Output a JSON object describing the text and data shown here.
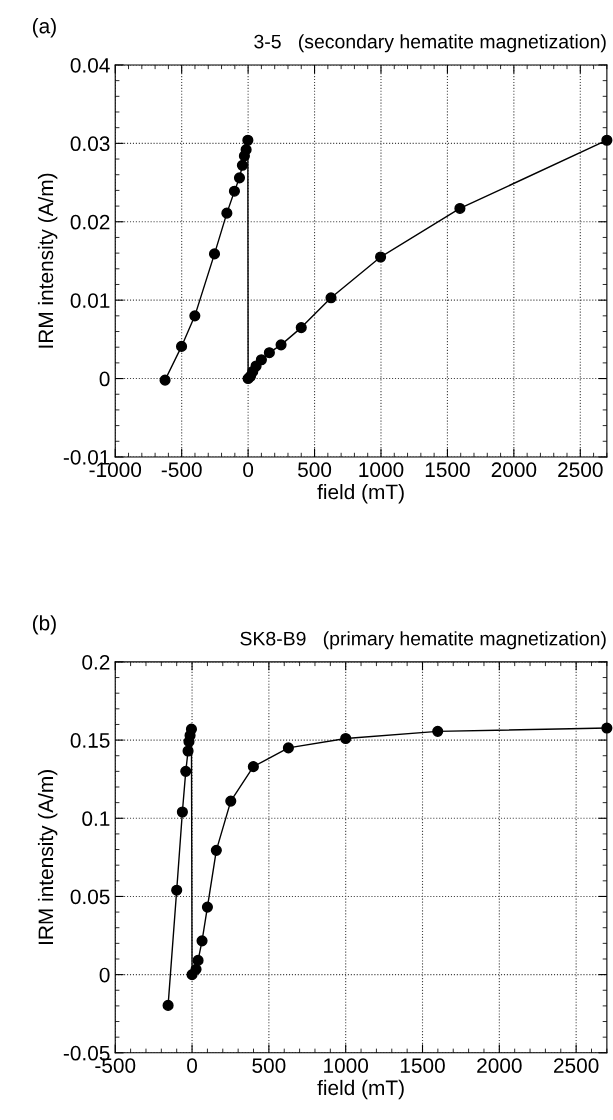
{
  "chart_data": [
    {
      "type": "line",
      "title": "3-5   (secondary hematite magnetization)",
      "xlabel": "field (mT)",
      "ylabel": "IRM intensity (A/m)",
      "annotations": [
        "(a)"
      ],
      "series": [
        {
          "color": "#000000",
          "x": [
            -625,
            -501,
            -401,
            -253,
            -160,
            -103,
            -65,
            -43,
            -28,
            -15,
            -2,
            0,
            18,
            35,
            60,
            100,
            160,
            248,
            400,
            624,
            997,
            1594,
            2700
          ],
          "values": [
            -0.0002,
            0.0041,
            0.008,
            0.0159,
            0.0211,
            0.0239,
            0.0256,
            0.0272,
            0.0284,
            0.0292,
            0.0304,
            0,
            0.0003,
            0.0009,
            0.0016,
            0.0024,
            0.0033,
            0.0043,
            0.0065,
            0.0103,
            0.0155,
            0.0217,
            0.0304
          ]
        }
      ],
      "xlim": [
        -1000,
        2700
      ],
      "xticks": [
        -1000,
        -500,
        0,
        500,
        1000,
        1500,
        2000,
        2500
      ],
      "ylim": [
        -0.01,
        0.04
      ],
      "yticks": [
        -0.01,
        0,
        0.01,
        0.02,
        0.03,
        0.04
      ],
      "grid": true,
      "marker": "circle",
      "line_style": "solid"
    },
    {
      "type": "line",
      "title": "SK8-B9   (primary hematite magnetization)",
      "xlabel": "field (mT)",
      "ylabel": "IRM intensity (A/m)",
      "annotations": [
        "(b)"
      ],
      "series": [
        {
          "color": "#000000",
          "x": [
            -156,
            -100,
            -63,
            -41,
            -26,
            -20,
            -13,
            -4,
            0,
            26,
            39,
            65,
            100,
            158,
            252,
            399,
            627,
            1000,
            1599,
            2700
          ],
          "values": [
            -0.0197,
            0.054,
            0.104,
            0.13,
            0.143,
            0.149,
            0.153,
            0.157,
            0,
            0.0034,
            0.0091,
            0.0216,
            0.0432,
            0.0795,
            0.111,
            0.133,
            0.145,
            0.151,
            0.1556,
            0.1577
          ]
        }
      ],
      "xlim": [
        -500,
        2700
      ],
      "xticks": [
        -500,
        0,
        500,
        1000,
        1500,
        2000,
        2500
      ],
      "ylim": [
        -0.05,
        0.2
      ],
      "yticks": [
        -0.05,
        0,
        0.05,
        0.1,
        0.15,
        0.2
      ],
      "grid": true,
      "marker": "circle",
      "line_style": "solid"
    }
  ]
}
